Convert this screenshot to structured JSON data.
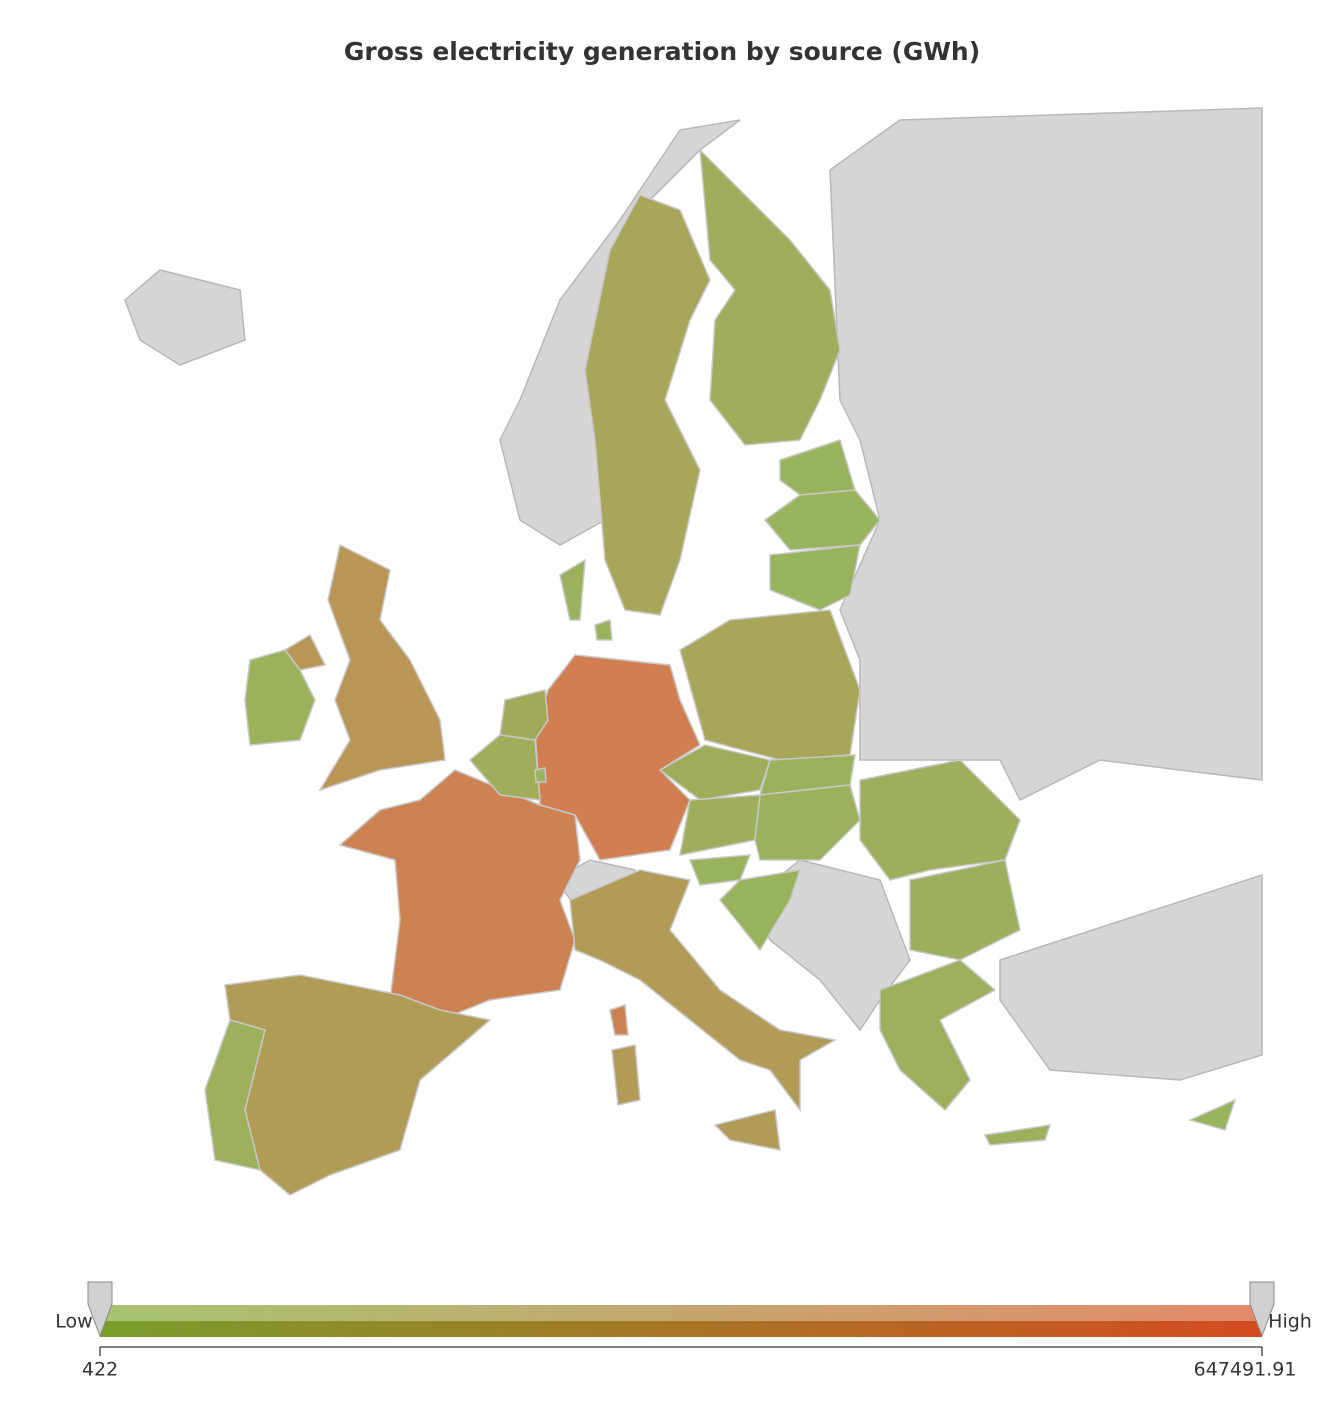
{
  "chart_data": {
    "type": "choropleth",
    "title": "Gross electricity generation by source (GWh)",
    "values": [
      600000,
      560000,
      350000,
      280000,
      270000,
      50000,
      160000,
      70000,
      10000,
      6000,
      5000,
      160000,
      30000,
      110000,
      80000,
      85000,
      65000,
      27000,
      30000,
      16000,
      12000,
      60000,
      45000,
      50000,
      28000,
      5000,
      3000
    ],
    "colors": [
      "#98b45c",
      "#d57a50"
    ],
    "no_data_color": "#d6d6d6",
    "legend_low": "Low",
    "legend_high": "High",
    "range": [
      422,
      647491.91
    ]
  }
}
